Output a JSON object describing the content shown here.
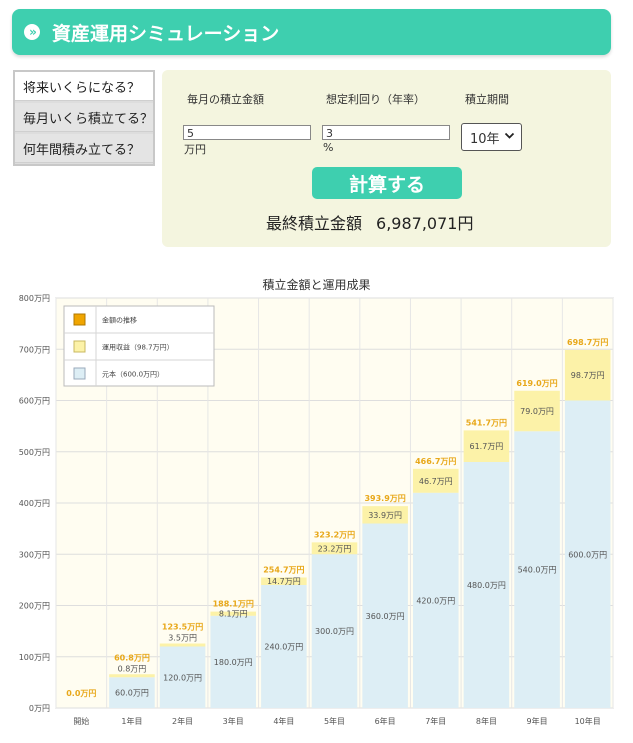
{
  "header": {
    "title": "資産運用シミュレーション",
    "arrow": "»"
  },
  "tabs": [
    {
      "label": "将来いくらになる？",
      "active": true
    },
    {
      "label": "毎月いくら積立てる？",
      "active": false
    },
    {
      "label": "何年間積み立てる？",
      "active": false
    }
  ],
  "form": {
    "monthly_label": "毎月の積立金額",
    "monthly_value": "5",
    "monthly_unit": "万円",
    "rate_label": "想定利回り（年率）",
    "rate_value": "3",
    "rate_unit": "%",
    "period_label": "積立期間",
    "period_value": "10年",
    "calc_button": "計算する",
    "result_label": "最終積立金額",
    "result_value": "6,987,071円"
  },
  "chart_data": {
    "type": "bar",
    "title": "積立金額と運用成果",
    "categories": [
      "開始",
      "1年目",
      "2年目",
      "3年目",
      "4年目",
      "5年目",
      "6年目",
      "7年目",
      "8年目",
      "9年目",
      "10年目"
    ],
    "ylim": [
      0,
      800
    ],
    "yticks": [
      "0万円",
      "100万円",
      "200万円",
      "300万円",
      "400万円",
      "500万円",
      "600万円",
      "700万円",
      "800万円"
    ],
    "series": [
      {
        "name": "元本（600.0万円）",
        "color": "#ddeef5",
        "values": [
          0,
          60,
          120,
          180,
          240,
          300,
          360,
          420,
          480,
          540,
          600
        ],
        "labels": [
          "",
          "60.0万円",
          "120.0万円",
          "180.0万円",
          "240.0万円",
          "300.0万円",
          "360.0万円",
          "420.0万円",
          "480.0万円",
          "540.0万円",
          "600.0万円"
        ]
      },
      {
        "name": "運用収益（98.7万円）",
        "color": "#fcf2a8",
        "values": [
          0,
          0.8,
          3.5,
          8.1,
          14.7,
          23.2,
          33.9,
          46.7,
          61.7,
          79.0,
          98.7
        ],
        "labels": [
          "",
          "0.8万円",
          "3.5万円",
          "8.1万円",
          "14.7万円",
          "23.2万円",
          "33.9万円",
          "46.7万円",
          "61.7万円",
          "79.0万円",
          "98.7万円"
        ]
      }
    ],
    "totals": [
      0,
      60.8,
      123.5,
      188.1,
      254.7,
      323.2,
      393.9,
      466.7,
      541.7,
      619.0,
      698.7
    ],
    "total_labels": [
      "0.0万円",
      "60.8万円",
      "123.5万円",
      "188.1万円",
      "254.7万円",
      "323.2万円",
      "393.9万円",
      "466.7万円",
      "541.7万円",
      "619.0万円",
      "698.7万円"
    ],
    "legend": {
      "placement": "top-left",
      "line_label": "金額の推移",
      "line_color": "#f0a500"
    },
    "grid": true
  }
}
